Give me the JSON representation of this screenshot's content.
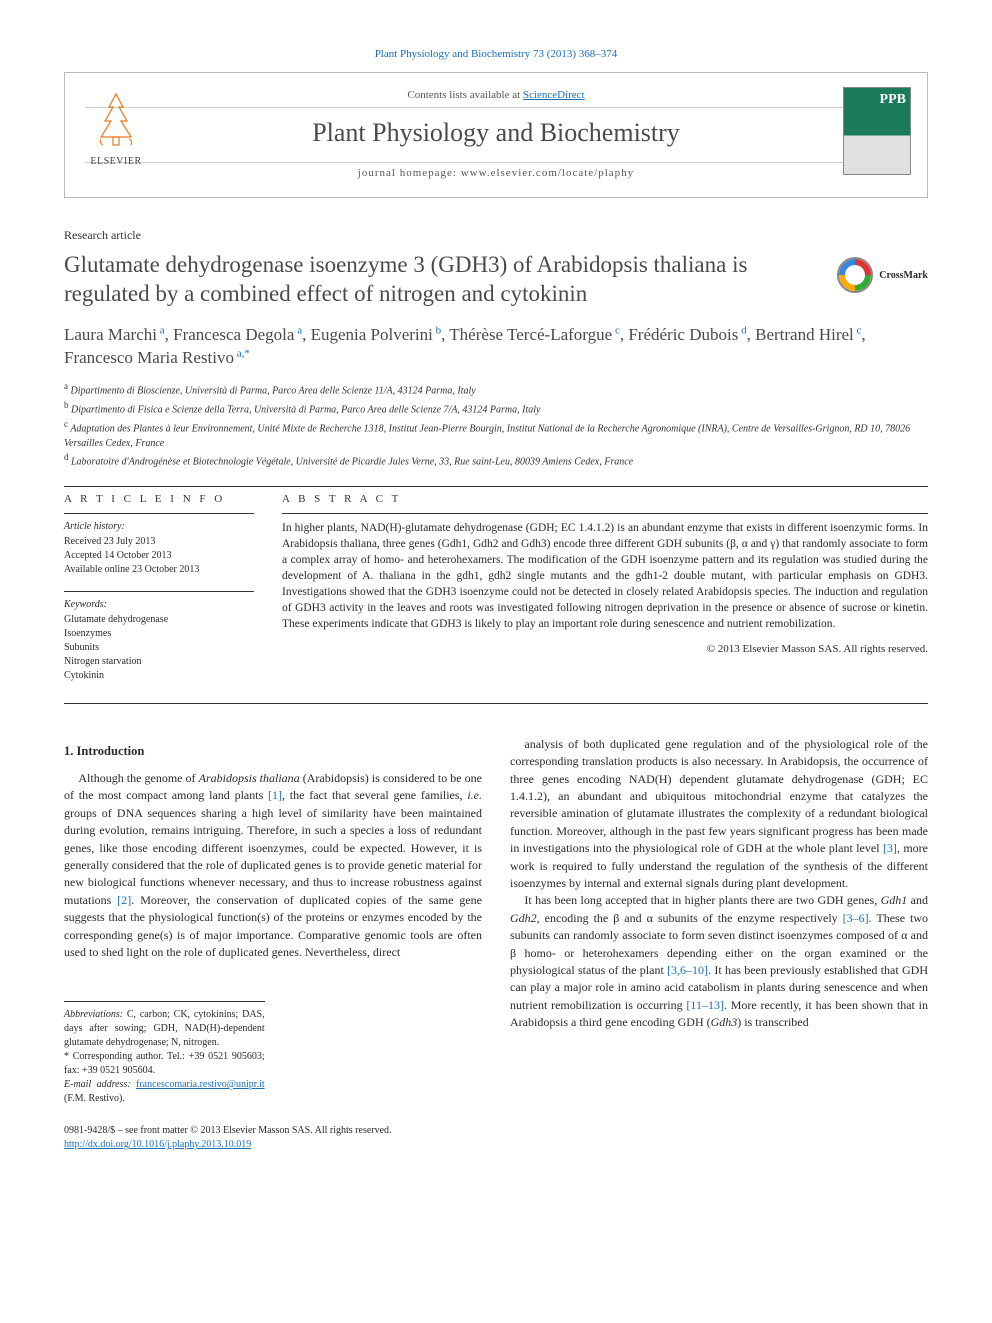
{
  "citation_link": "Plant Physiology and Biochemistry 73 (2013) 368–374",
  "header": {
    "contents_prefix": "Contents lists available at ",
    "contents_link": "ScienceDirect",
    "journal_title": "Plant Physiology and Biochemistry",
    "homepage_prefix": "journal homepage: ",
    "homepage_url": "www.elsevier.com/locate/plaphy",
    "publisher": "ELSEVIER",
    "cover_badge": "PPB"
  },
  "article_type": "Research article",
  "title": "Glutamate dehydrogenase isoenzyme 3 (GDH3) of Arabidopsis thaliana is regulated by a combined effect of nitrogen and cytokinin",
  "crossmark_label": "CrossMark",
  "authors_html": "Laura Marchi<sup> a</sup>, Francesca Degola<sup> a</sup>, Eugenia Polverini<sup> b</sup>, Thérèse Tercé-Laforgue<sup> c</sup>, Frédéric Dubois<sup> d</sup>, Bertrand Hirel<sup> c</sup>, Francesco Maria Restivo<sup> a,*</sup>",
  "affiliations": {
    "a": "Dipartimento di Bioscienze, Università di Parma, Parco Area delle Scienze 11/A, 43124 Parma, Italy",
    "b": "Dipartimento di Fisica e Scienze della Terra, Università di Parma, Parco Area delle Scienze 7/A, 43124 Parma, Italy",
    "c": "Adaptation des Plantes à leur Environnement, Unité Mixte de Recherche 1318, Institut Jean-Pierre Bourgin, Institut National de la Recherche Agronomique (INRA), Centre de Versailles-Grignon, RD 10, 78026 Versailles Cedex, France",
    "d": "Laboratoire d'Androgénèse et Biotechnologie Végétale, Université de Picardie Jules Verne, 33, Rue saint-Leu, 80039 Amiens Cedex, France"
  },
  "info": {
    "heading": "A R T I C L E  I N F O",
    "history_label": "Article history:",
    "received": "Received 23 July 2013",
    "accepted": "Accepted 14 October 2013",
    "online": "Available online 23 October 2013",
    "keywords_label": "Keywords:",
    "keywords": [
      "Glutamate dehydrogenase",
      "Isoenzymes",
      "Subunits",
      "Nitrogen starvation",
      "Cytokinin"
    ]
  },
  "abstract": {
    "heading": "A B S T R A C T",
    "text": "In higher plants, NAD(H)-glutamate dehydrogenase (GDH; EC 1.4.1.2) is an abundant enzyme that exists in different isoenzymic forms. In Arabidopsis thaliana, three genes (Gdh1, Gdh2 and Gdh3) encode three different GDH subunits (β, α and γ) that randomly associate to form a complex array of homo- and heterohexamers. The modification of the GDH isoenzyme pattern and its regulation was studied during the development of A. thaliana in the gdh1, gdh2 single mutants and the gdh1-2 double mutant, with particular emphasis on GDH3. Investigations showed that the GDH3 isoenzyme could not be detected in closely related Arabidopsis species. The induction and regulation of GDH3 activity in the leaves and roots was investigated following nitrogen deprivation in the presence or absence of sucrose or kinetin. These experiments indicate that GDH3 is likely to play an important role during senescence and nutrient remobilization.",
    "copyright": "© 2013 Elsevier Masson SAS. All rights reserved."
  },
  "body": {
    "section_heading": "1. Introduction",
    "left_paras": [
      "Although the genome of Arabidopsis thaliana (Arabidopsis) is considered to be one of the most compact among land plants [1], the fact that several gene families, i.e. groups of DNA sequences sharing a high level of similarity have been maintained during evolution, remains intriguing. Therefore, in such a species a loss of redundant genes, like those encoding different isoenzymes, could be expected. However, it is generally considered that the role of duplicated genes is to provide genetic material for new biological functions whenever necessary, and thus to increase robustness against mutations [2]. Moreover, the conservation of duplicated copies of the same gene suggests that the physiological function(s) of the proteins or enzymes encoded by the corresponding gene(s) is of major importance. Comparative genomic tools are often used to shed light on the role of duplicated genes. Nevertheless, direct"
    ],
    "right_paras": [
      "analysis of both duplicated gene regulation and of the physiological role of the corresponding translation products is also necessary. In Arabidopsis, the occurrence of three genes encoding NAD(H) dependent glutamate dehydrogenase (GDH; EC 1.4.1.2), an abundant and ubiquitous mitochondrial enzyme that catalyzes the reversible amination of glutamate illustrates the complexity of a redundant biological function. Moreover, although in the past few years significant progress has been made in investigations into the physiological role of GDH at the whole plant level [3], more work is required to fully understand the regulation of the synthesis of the different isoenzymes by internal and external signals during plant development.",
      "It has been long accepted that in higher plants there are two GDH genes, Gdh1 and Gdh2, encoding the β and α subunits of the enzyme respectively [3–6]. These two subunits can randomly associate to form seven distinct isoenzymes composed of α and β homo- or heterohexamers depending either on the organ examined or the physiological status of the plant [3,6–10]. It has been previously established that GDH can play a major role in amino acid catabolism in plants during senescence and when nutrient remobilization is occurring [11–13]. More recently, it has been shown that in Arabidopsis a third gene encoding GDH (Gdh3) is transcribed"
    ]
  },
  "footnotes": {
    "abbrev_label": "Abbreviations:",
    "abbrev_text": " C, carbon; CK, cytokinins; DAS, days after sowing; GDH, NAD(H)-dependent glutamate dehydrogenase; N, nitrogen.",
    "corr_label": "* Corresponding author. ",
    "corr_text": "Tel.: +39 0521 905603; fax: +39 0521 905604.",
    "email_label": "E-mail address: ",
    "email": "francescomaria.restivo@unipr.it",
    "email_who": " (F.M. Restivo)."
  },
  "footer": {
    "issn_line": "0981-9428/$ – see front matter © 2013 Elsevier Masson SAS. All rights reserved.",
    "doi": "http://dx.doi.org/10.1016/j.plaphy.2013.10.019"
  },
  "colors": {
    "link": "#1a6fb5",
    "text": "#2a2a2a",
    "heading": "#4a4a4a",
    "rule": "#333333",
    "cover_green": "#1a7a5a"
  }
}
